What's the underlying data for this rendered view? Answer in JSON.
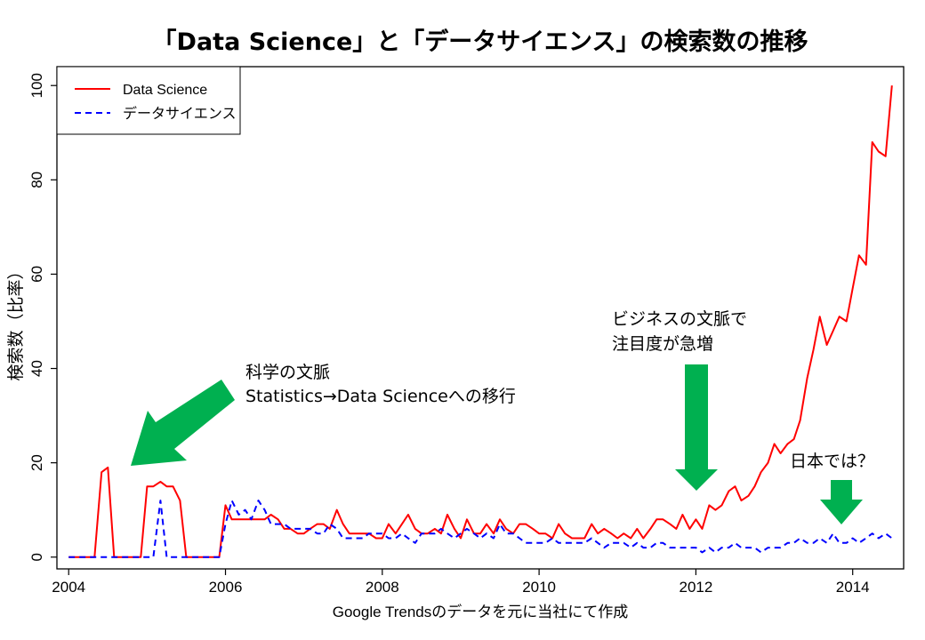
{
  "chart_data": {
    "type": "line",
    "title": "「Data Science」と「データサイエンス」の検索数の推移",
    "xlabel": "Google Trendsのデータを元に当社にて作成",
    "ylabel": "検索数（比率）",
    "xlim": [
      2003.85,
      2014.65
    ],
    "ylim": [
      -2.5,
      104
    ],
    "x_ticks": [
      "2004",
      "2006",
      "2008",
      "2010",
      "2012",
      "2014"
    ],
    "y_ticks": [
      "0",
      "20",
      "40",
      "60",
      "80",
      "100"
    ],
    "grid": false,
    "legend_position": "top-left",
    "series": [
      {
        "name": "Data Science",
        "color": "#ff0000",
        "style": "solid",
        "points": [
          [
            2004.0,
            0
          ],
          [
            2004.33,
            0
          ],
          [
            2004.42,
            18
          ],
          [
            2004.5,
            19
          ],
          [
            2004.58,
            0
          ],
          [
            2004.92,
            0
          ],
          [
            2005.0,
            15
          ],
          [
            2005.08,
            15
          ],
          [
            2005.17,
            16
          ],
          [
            2005.25,
            15
          ],
          [
            2005.33,
            15
          ],
          [
            2005.42,
            12
          ],
          [
            2005.5,
            0
          ],
          [
            2005.92,
            0
          ],
          [
            2006.0,
            11
          ],
          [
            2006.08,
            8
          ],
          [
            2006.25,
            8
          ],
          [
            2006.42,
            8
          ],
          [
            2006.5,
            8
          ],
          [
            2006.58,
            9
          ],
          [
            2006.67,
            8
          ],
          [
            2006.75,
            6
          ],
          [
            2006.83,
            6
          ],
          [
            2006.92,
            5
          ],
          [
            2007.0,
            5
          ],
          [
            2007.08,
            6
          ],
          [
            2007.17,
            7
          ],
          [
            2007.25,
            7
          ],
          [
            2007.33,
            6
          ],
          [
            2007.42,
            10
          ],
          [
            2007.5,
            7
          ],
          [
            2007.58,
            5
          ],
          [
            2007.67,
            5
          ],
          [
            2007.75,
            5
          ],
          [
            2007.83,
            5
          ],
          [
            2007.92,
            4
          ],
          [
            2008.0,
            4
          ],
          [
            2008.08,
            7
          ],
          [
            2008.17,
            5
          ],
          [
            2008.25,
            7
          ],
          [
            2008.33,
            9
          ],
          [
            2008.42,
            6
          ],
          [
            2008.5,
            5
          ],
          [
            2008.58,
            5
          ],
          [
            2008.67,
            6
          ],
          [
            2008.75,
            5
          ],
          [
            2008.83,
            9
          ],
          [
            2008.92,
            6
          ],
          [
            2009.0,
            4
          ],
          [
            2009.08,
            8
          ],
          [
            2009.17,
            5
          ],
          [
            2009.25,
            5
          ],
          [
            2009.33,
            7
          ],
          [
            2009.42,
            5
          ],
          [
            2009.5,
            8
          ],
          [
            2009.58,
            6
          ],
          [
            2009.67,
            5
          ],
          [
            2009.75,
            7
          ],
          [
            2009.83,
            7
          ],
          [
            2009.92,
            6
          ],
          [
            2010.0,
            5
          ],
          [
            2010.08,
            5
          ],
          [
            2010.17,
            4
          ],
          [
            2010.25,
            7
          ],
          [
            2010.33,
            5
          ],
          [
            2010.42,
            4
          ],
          [
            2010.5,
            4
          ],
          [
            2010.58,
            4
          ],
          [
            2010.67,
            7
          ],
          [
            2010.75,
            5
          ],
          [
            2010.83,
            6
          ],
          [
            2010.92,
            5
          ],
          [
            2011.0,
            4
          ],
          [
            2011.08,
            5
          ],
          [
            2011.17,
            4
          ],
          [
            2011.25,
            6
          ],
          [
            2011.33,
            4
          ],
          [
            2011.42,
            6
          ],
          [
            2011.5,
            8
          ],
          [
            2011.58,
            8
          ],
          [
            2011.67,
            7
          ],
          [
            2011.75,
            6
          ],
          [
            2011.83,
            9
          ],
          [
            2011.92,
            6
          ],
          [
            2012.0,
            8
          ],
          [
            2012.08,
            6
          ],
          [
            2012.17,
            11
          ],
          [
            2012.25,
            10
          ],
          [
            2012.33,
            11
          ],
          [
            2012.42,
            14
          ],
          [
            2012.5,
            15
          ],
          [
            2012.58,
            12
          ],
          [
            2012.67,
            13
          ],
          [
            2012.75,
            15
          ],
          [
            2012.83,
            18
          ],
          [
            2012.92,
            20
          ],
          [
            2013.0,
            24
          ],
          [
            2013.08,
            22
          ],
          [
            2013.17,
            24
          ],
          [
            2013.25,
            25
          ],
          [
            2013.33,
            29
          ],
          [
            2013.42,
            38
          ],
          [
            2013.5,
            44
          ],
          [
            2013.58,
            51
          ],
          [
            2013.67,
            45
          ],
          [
            2013.75,
            48
          ],
          [
            2013.83,
            51
          ],
          [
            2013.92,
            50
          ],
          [
            2014.0,
            57
          ],
          [
            2014.08,
            64
          ],
          [
            2014.17,
            62
          ],
          [
            2014.25,
            88
          ],
          [
            2014.33,
            86
          ],
          [
            2014.42,
            85
          ],
          [
            2014.5,
            100
          ]
        ]
      },
      {
        "name": "データサイエンス",
        "color": "#0000ff",
        "style": "dashed",
        "points": [
          [
            2004.0,
            0
          ],
          [
            2005.08,
            0
          ],
          [
            2005.17,
            12
          ],
          [
            2005.25,
            0
          ],
          [
            2005.92,
            0
          ],
          [
            2006.0,
            7
          ],
          [
            2006.08,
            12
          ],
          [
            2006.17,
            9
          ],
          [
            2006.25,
            10
          ],
          [
            2006.33,
            8
          ],
          [
            2006.42,
            12
          ],
          [
            2006.5,
            10
          ],
          [
            2006.58,
            7
          ],
          [
            2006.67,
            7
          ],
          [
            2006.75,
            7
          ],
          [
            2006.83,
            6
          ],
          [
            2006.92,
            6
          ],
          [
            2007.0,
            6
          ],
          [
            2007.08,
            6
          ],
          [
            2007.17,
            5
          ],
          [
            2007.25,
            5
          ],
          [
            2007.33,
            7
          ],
          [
            2007.42,
            6
          ],
          [
            2007.5,
            4
          ],
          [
            2007.58,
            4
          ],
          [
            2007.67,
            4
          ],
          [
            2007.75,
            4
          ],
          [
            2007.83,
            5
          ],
          [
            2007.92,
            5
          ],
          [
            2008.0,
            5
          ],
          [
            2008.08,
            4
          ],
          [
            2008.17,
            4
          ],
          [
            2008.25,
            5
          ],
          [
            2008.33,
            4
          ],
          [
            2008.42,
            3
          ],
          [
            2008.5,
            5
          ],
          [
            2008.58,
            5
          ],
          [
            2008.67,
            5
          ],
          [
            2008.75,
            6
          ],
          [
            2008.83,
            5
          ],
          [
            2008.92,
            4
          ],
          [
            2009.0,
            5
          ],
          [
            2009.08,
            6
          ],
          [
            2009.17,
            5
          ],
          [
            2009.25,
            4
          ],
          [
            2009.33,
            5
          ],
          [
            2009.42,
            4
          ],
          [
            2009.5,
            7
          ],
          [
            2009.58,
            5
          ],
          [
            2009.67,
            5
          ],
          [
            2009.75,
            4
          ],
          [
            2009.83,
            3
          ],
          [
            2009.92,
            3
          ],
          [
            2010.0,
            3
          ],
          [
            2010.08,
            3
          ],
          [
            2010.17,
            4
          ],
          [
            2010.25,
            3
          ],
          [
            2010.33,
            3
          ],
          [
            2010.42,
            3
          ],
          [
            2010.5,
            3
          ],
          [
            2010.58,
            3
          ],
          [
            2010.67,
            4
          ],
          [
            2010.75,
            3
          ],
          [
            2010.83,
            2
          ],
          [
            2010.92,
            3
          ],
          [
            2011.0,
            3
          ],
          [
            2011.08,
            3
          ],
          [
            2011.17,
            2
          ],
          [
            2011.25,
            3
          ],
          [
            2011.33,
            2
          ],
          [
            2011.42,
            2
          ],
          [
            2011.5,
            3
          ],
          [
            2011.58,
            3
          ],
          [
            2011.67,
            2
          ],
          [
            2011.75,
            2
          ],
          [
            2011.83,
            2
          ],
          [
            2011.92,
            2
          ],
          [
            2012.0,
            2
          ],
          [
            2012.08,
            1
          ],
          [
            2012.17,
            2
          ],
          [
            2012.25,
            1
          ],
          [
            2012.33,
            2
          ],
          [
            2012.42,
            2
          ],
          [
            2012.5,
            3
          ],
          [
            2012.58,
            2
          ],
          [
            2012.67,
            2
          ],
          [
            2012.75,
            2
          ],
          [
            2012.83,
            1
          ],
          [
            2012.92,
            2
          ],
          [
            2013.0,
            2
          ],
          [
            2013.08,
            2
          ],
          [
            2013.17,
            3
          ],
          [
            2013.25,
            3
          ],
          [
            2013.33,
            4
          ],
          [
            2013.42,
            3
          ],
          [
            2013.5,
            3
          ],
          [
            2013.58,
            4
          ],
          [
            2013.67,
            3
          ],
          [
            2013.75,
            5
          ],
          [
            2013.83,
            3
          ],
          [
            2013.92,
            3
          ],
          [
            2014.0,
            4
          ],
          [
            2014.08,
            3
          ],
          [
            2014.17,
            4
          ],
          [
            2014.25,
            5
          ],
          [
            2014.33,
            4
          ],
          [
            2014.42,
            5
          ],
          [
            2014.5,
            4
          ]
        ]
      }
    ],
    "annotations": [
      {
        "lines": [
          "科学の文脈",
          "Statistics→Data Scienceへの移行"
        ]
      },
      {
        "lines": [
          "ビジネスの文脈で",
          "注目度が急増"
        ]
      },
      {
        "lines": [
          "日本では？"
        ]
      }
    ],
    "arrow_color": "#00b050"
  }
}
